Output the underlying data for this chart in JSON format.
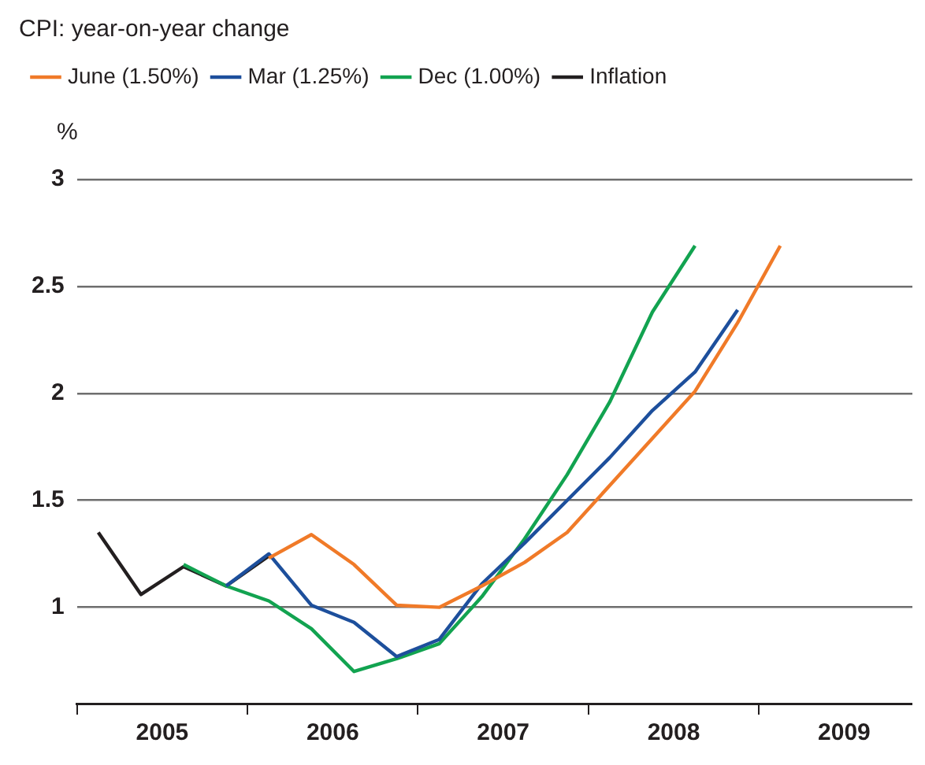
{
  "chart_data": {
    "type": "line",
    "title": "CPI: year-on-year change",
    "ylabel": "%",
    "series": [
      {
        "name": "June (1.50%)",
        "color": "#f07a28",
        "x": [
          2006.125,
          2006.375,
          2006.625,
          2006.875,
          2007.125,
          2007.375,
          2007.625,
          2007.875,
          2008.125,
          2008.375,
          2008.625,
          2008.875,
          2009.125
        ],
        "values": [
          1.23,
          1.34,
          1.2,
          1.01,
          1.0,
          1.1,
          1.21,
          1.35,
          1.57,
          1.79,
          2.01,
          2.33,
          2.69
        ]
      },
      {
        "name": "Mar (1.25%)",
        "color": "#1d4f9c",
        "x": [
          2005.875,
          2006.125,
          2006.375,
          2006.625,
          2006.875,
          2007.125,
          2007.375,
          2007.625,
          2007.875,
          2008.125,
          2008.375,
          2008.625,
          2008.875
        ],
        "values": [
          1.1,
          1.25,
          1.01,
          0.93,
          0.77,
          0.85,
          1.11,
          1.3,
          1.5,
          1.7,
          1.92,
          2.1,
          2.39
        ]
      },
      {
        "name": "Dec (1.00%)",
        "color": "#12a350",
        "x": [
          2005.625,
          2005.875,
          2006.125,
          2006.375,
          2006.625,
          2006.875,
          2007.125,
          2007.375,
          2007.625,
          2007.875,
          2008.125,
          2008.375,
          2008.625
        ],
        "values": [
          1.2,
          1.1,
          1.03,
          0.9,
          0.7,
          0.76,
          0.83,
          1.05,
          1.32,
          1.62,
          1.96,
          2.38,
          2.69
        ]
      },
      {
        "name": "Inflation",
        "color": "#231f20",
        "x": [
          2005.125,
          2005.375,
          2005.625,
          2005.875,
          2006.125
        ],
        "values": [
          1.35,
          1.06,
          1.19,
          1.1,
          1.24
        ]
      }
    ],
    "xlim": [
      2005,
      2009.9
    ],
    "xticks": [
      {
        "value": 2005,
        "label": null
      },
      {
        "value": 2005.5,
        "label": "2005"
      },
      {
        "value": 2006,
        "label": null
      },
      {
        "value": 2006.5,
        "label": "2006"
      },
      {
        "value": 2007,
        "label": null
      },
      {
        "value": 2007.5,
        "label": "2007"
      },
      {
        "value": 2008,
        "label": null
      },
      {
        "value": 2008.5,
        "label": "2008"
      },
      {
        "value": 2009,
        "label": null
      },
      {
        "value": 2009.5,
        "label": "2009"
      }
    ],
    "ylim": [
      0.55,
      3
    ],
    "yticks": [
      1,
      1.5,
      2,
      2.5,
      3
    ],
    "grid": "y",
    "legend": "top",
    "line_style": "solid",
    "marker": "none"
  }
}
